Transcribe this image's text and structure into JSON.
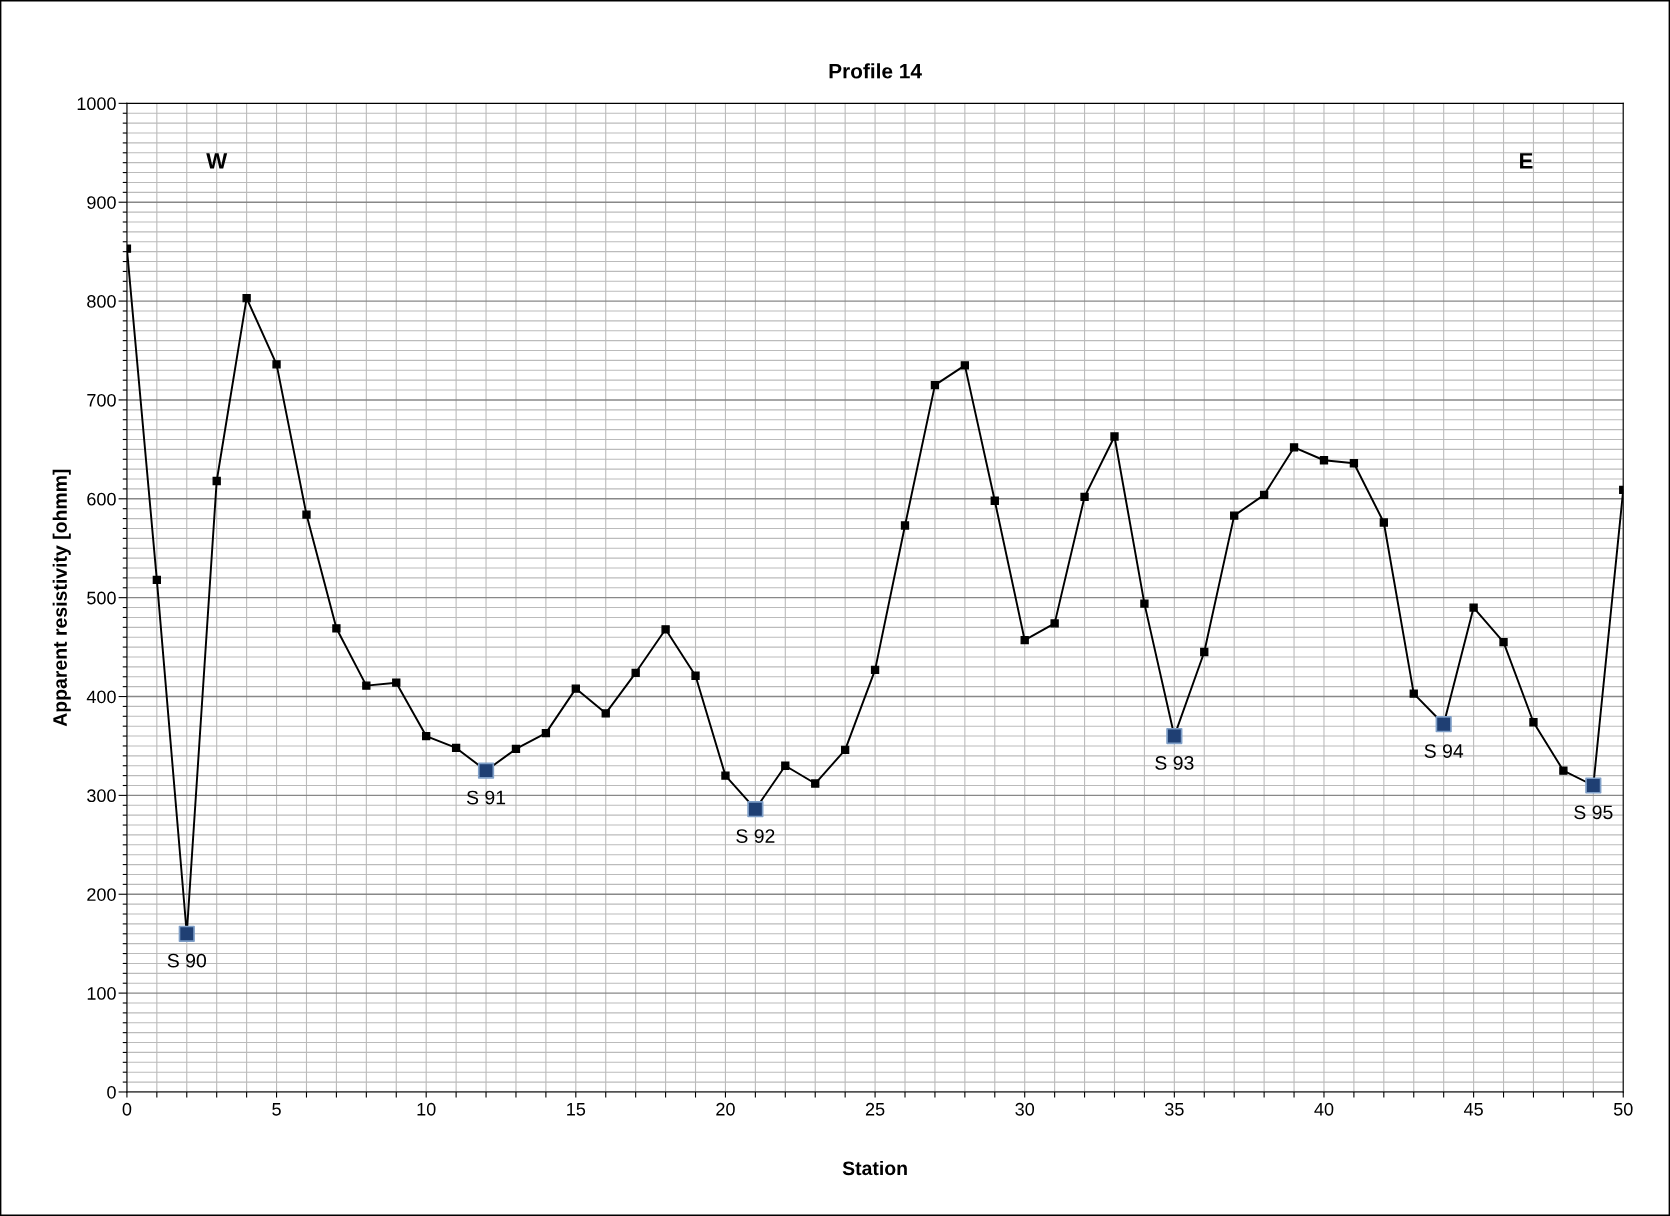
{
  "chart_data": {
    "type": "line",
    "title": "Profile 14",
    "xlabel": "Station",
    "ylabel": "Apparent resistivity [ohmm]",
    "x": [
      0,
      1,
      2,
      3,
      4,
      5,
      6,
      7,
      8,
      9,
      10,
      11,
      12,
      13,
      14,
      15,
      16,
      17,
      18,
      19,
      20,
      21,
      22,
      23,
      24,
      25,
      26,
      27,
      28,
      29,
      30,
      31,
      32,
      33,
      34,
      35,
      36,
      37,
      38,
      39,
      40,
      41,
      42,
      43,
      44,
      45,
      46,
      47,
      48,
      49,
      50
    ],
    "series": [
      {
        "color": "#000000",
        "marker": "square",
        "values": [
          853,
          518,
          160,
          618,
          803,
          736,
          584,
          469,
          411,
          414,
          360,
          348,
          325,
          347,
          363,
          408,
          383,
          424,
          468,
          421,
          320,
          286,
          330,
          312,
          346,
          427,
          573,
          715,
          735,
          598,
          457,
          474,
          602,
          663,
          494,
          360,
          445,
          583,
          604,
          652,
          639,
          636,
          576,
          403,
          372,
          490,
          455,
          374,
          325,
          310,
          609
        ]
      },
      {
        "type": "scatter",
        "color": "#1f3f73",
        "marker": "square",
        "x": [
          2,
          12,
          21,
          35,
          44,
          49
        ],
        "values": [
          160,
          325,
          286,
          360,
          372,
          310
        ]
      }
    ],
    "xlim": [
      0,
      50
    ],
    "ylim": [
      0,
      1000
    ],
    "xticks": [
      0,
      {
        "value": 1,
        "label": null
      },
      {
        "value": 2,
        "label": null
      },
      {
        "value": 3,
        "label": null
      },
      {
        "value": 4,
        "label": null
      },
      5,
      {
        "value": 6,
        "label": null
      },
      {
        "value": 7,
        "label": null
      },
      {
        "value": 8,
        "label": null
      },
      {
        "value": 9,
        "label": null
      },
      10,
      {
        "value": 11,
        "label": null
      },
      {
        "value": 12,
        "label": null
      },
      {
        "value": 13,
        "label": null
      },
      {
        "value": 14,
        "label": null
      },
      15,
      {
        "value": 16,
        "label": null
      },
      {
        "value": 17,
        "label": null
      },
      {
        "value": 18,
        "label": null
      },
      {
        "value": 19,
        "label": null
      },
      20,
      {
        "value": 21,
        "label": null
      },
      {
        "value": 22,
        "label": null
      },
      {
        "value": 23,
        "label": null
      },
      {
        "value": 24,
        "label": null
      },
      25,
      {
        "value": 26,
        "label": null
      },
      {
        "value": 27,
        "label": null
      },
      {
        "value": 28,
        "label": null
      },
      {
        "value": 29,
        "label": null
      },
      30,
      {
        "value": 31,
        "label": null
      },
      {
        "value": 32,
        "label": null
      },
      {
        "value": 33,
        "label": null
      },
      {
        "value": 34,
        "label": null
      },
      35,
      {
        "value": 36,
        "label": null
      },
      {
        "value": 37,
        "label": null
      },
      {
        "value": 38,
        "label": null
      },
      {
        "value": 39,
        "label": null
      },
      40,
      {
        "value": 41,
        "label": null
      },
      {
        "value": 42,
        "label": null
      },
      {
        "value": 43,
        "label": null
      },
      {
        "value": 44,
        "label": null
      },
      45,
      {
        "value": 46,
        "label": null
      },
      {
        "value": 47,
        "label": null
      },
      {
        "value": 48,
        "label": null
      },
      {
        "value": 49,
        "label": null
      },
      50
    ],
    "yticks": [
      0,
      {
        "value": 10,
        "label": null
      },
      {
        "value": 20,
        "label": null
      },
      {
        "value": 30,
        "label": null
      },
      {
        "value": 40,
        "label": null
      },
      {
        "value": 50,
        "label": null
      },
      {
        "value": 60,
        "label": null
      },
      {
        "value": 70,
        "label": null
      },
      {
        "value": 80,
        "label": null
      },
      {
        "value": 90,
        "label": null
      },
      100,
      {
        "value": 110,
        "label": null
      },
      {
        "value": 120,
        "label": null
      },
      {
        "value": 130,
        "label": null
      },
      {
        "value": 140,
        "label": null
      },
      {
        "value": 150,
        "label": null
      },
      {
        "value": 160,
        "label": null
      },
      {
        "value": 170,
        "label": null
      },
      {
        "value": 180,
        "label": null
      },
      {
        "value": 190,
        "label": null
      },
      200,
      {
        "value": 210,
        "label": null
      },
      {
        "value": 220,
        "label": null
      },
      {
        "value": 230,
        "label": null
      },
      {
        "value": 240,
        "label": null
      },
      {
        "value": 250,
        "label": null
      },
      {
        "value": 260,
        "label": null
      },
      {
        "value": 270,
        "label": null
      },
      {
        "value": 280,
        "label": null
      },
      {
        "value": 290,
        "label": null
      },
      300,
      {
        "value": 310,
        "label": null
      },
      {
        "value": 320,
        "label": null
      },
      {
        "value": 330,
        "label": null
      },
      {
        "value": 340,
        "label": null
      },
      {
        "value": 350,
        "label": null
      },
      {
        "value": 360,
        "label": null
      },
      {
        "value": 370,
        "label": null
      },
      {
        "value": 380,
        "label": null
      },
      {
        "value": 390,
        "label": null
      },
      400,
      {
        "value": 410,
        "label": null
      },
      {
        "value": 420,
        "label": null
      },
      {
        "value": 430,
        "label": null
      },
      {
        "value": 440,
        "label": null
      },
      {
        "value": 450,
        "label": null
      },
      {
        "value": 460,
        "label": null
      },
      {
        "value": 470,
        "label": null
      },
      {
        "value": 480,
        "label": null
      },
      {
        "value": 490,
        "label": null
      },
      500,
      {
        "value": 510,
        "label": null
      },
      {
        "value": 520,
        "label": null
      },
      {
        "value": 530,
        "label": null
      },
      {
        "value": 540,
        "label": null
      },
      {
        "value": 550,
        "label": null
      },
      {
        "value": 560,
        "label": null
      },
      {
        "value": 570,
        "label": null
      },
      {
        "value": 580,
        "label": null
      },
      {
        "value": 590,
        "label": null
      },
      600,
      {
        "value": 610,
        "label": null
      },
      {
        "value": 620,
        "label": null
      },
      {
        "value": 630,
        "label": null
      },
      {
        "value": 640,
        "label": null
      },
      {
        "value": 650,
        "label": null
      },
      {
        "value": 660,
        "label": null
      },
      {
        "value": 670,
        "label": null
      },
      {
        "value": 680,
        "label": null
      },
      {
        "value": 690,
        "label": null
      },
      700,
      {
        "value": 710,
        "label": null
      },
      {
        "value": 720,
        "label": null
      },
      {
        "value": 730,
        "label": null
      },
      {
        "value": 740,
        "label": null
      },
      {
        "value": 750,
        "label": null
      },
      {
        "value": 760,
        "label": null
      },
      {
        "value": 770,
        "label": null
      },
      {
        "value": 780,
        "label": null
      },
      {
        "value": 790,
        "label": null
      },
      800,
      {
        "value": 810,
        "label": null
      },
      {
        "value": 820,
        "label": null
      },
      {
        "value": 830,
        "label": null
      },
      {
        "value": 840,
        "label": null
      },
      {
        "value": 850,
        "label": null
      },
      {
        "value": 860,
        "label": null
      },
      {
        "value": 870,
        "label": null
      },
      {
        "value": 880,
        "label": null
      },
      {
        "value": 890,
        "label": null
      },
      900,
      {
        "value": 910,
        "label": null
      },
      {
        "value": 920,
        "label": null
      },
      {
        "value": 930,
        "label": null
      },
      {
        "value": 940,
        "label": null
      },
      {
        "value": 950,
        "label": null
      },
      {
        "value": 960,
        "label": null
      },
      {
        "value": 970,
        "label": null
      },
      {
        "value": 980,
        "label": null
      },
      {
        "value": 990,
        "label": null
      },
      1000
    ],
    "grid": true,
    "legend": false,
    "annotations": [
      "W",
      "E",
      {
        "text": "S 90",
        "x": 2,
        "y": 160
      },
      {
        "text": "S 91",
        "x": 12,
        "y": 325
      },
      {
        "text": "S 92",
        "x": 21,
        "y": 286
      },
      {
        "text": "S 93",
        "x": 35,
        "y": 360
      },
      {
        "text": "S 94",
        "x": 44,
        "y": 372
      },
      {
        "text": "S 95",
        "x": 49,
        "y": 310
      }
    ]
  }
}
